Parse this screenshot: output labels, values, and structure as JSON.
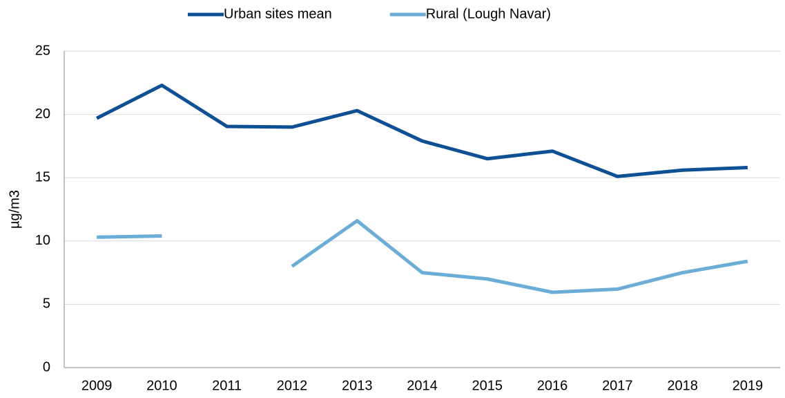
{
  "chart_data": {
    "type": "line",
    "y_label": "µg/m3",
    "categories": [
      "2009",
      "2010",
      "2011",
      "2012",
      "2013",
      "2014",
      "2015",
      "2016",
      "2017",
      "2018",
      "2019"
    ],
    "series": [
      {
        "name": "Urban sites mean",
        "color": "#0f4f94",
        "values": [
          19.7,
          22.3,
          19.05,
          19.0,
          20.3,
          17.9,
          16.5,
          17.1,
          15.1,
          15.6,
          15.8
        ]
      },
      {
        "name": "Rural (Lough Navar)",
        "color": "#6badd6",
        "values": [
          10.3,
          10.4,
          null,
          8.0,
          11.6,
          7.5,
          7.0,
          5.95,
          6.2,
          7.5,
          8.4
        ]
      }
    ],
    "ylim": [
      0,
      25
    ],
    "yticks": [
      0,
      5,
      10,
      15,
      20,
      25
    ],
    "grid": true,
    "legend": "top"
  }
}
